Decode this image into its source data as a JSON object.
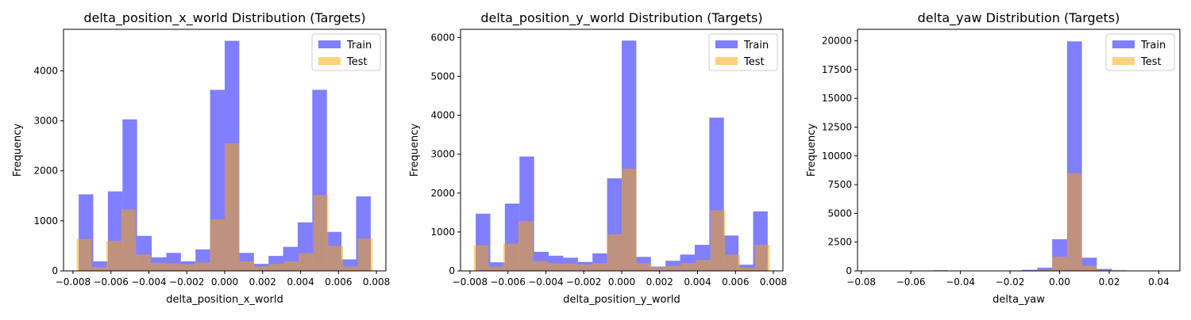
{
  "colors": {
    "train": "#0000ff",
    "test": "#ffa500",
    "train_alpha": 0.5,
    "test_alpha": 0.5
  },
  "chart_data": [
    {
      "type": "histogram",
      "title": "delta_position_x_world Distribution (Targets)",
      "xlabel": "delta_position_x_world",
      "ylabel": "Frequency",
      "xlim": [
        -0.0085,
        0.0085
      ],
      "ylim": [
        0,
        4830
      ],
      "xticks": [
        -0.008,
        -0.006,
        -0.004,
        -0.002,
        0.0,
        0.002,
        0.004,
        0.006,
        0.008
      ],
      "xtick_labels": [
        "−0.008",
        "−0.006",
        "−0.004",
        "−0.002",
        "0.000",
        "0.002",
        "0.004",
        "0.006",
        "0.008"
      ],
      "yticks": [
        0,
        1000,
        2000,
        3000,
        4000
      ],
      "ytick_labels": [
        "0",
        "1000",
        "2000",
        "3000",
        "4000"
      ],
      "legend": "top-right",
      "grid": false,
      "series": [
        {
          "name": "Train",
          "bin_edges": [
            -0.0077,
            -0.00693,
            -0.00616,
            -0.00539,
            -0.00462,
            -0.00385,
            -0.00308,
            -0.00231,
            -0.00154,
            -0.00077,
            0.0,
            0.00077,
            0.00154,
            0.00231,
            0.00308,
            0.00385,
            0.00462,
            0.00539,
            0.00616,
            0.00693,
            0.0077
          ],
          "values": [
            1530,
            190,
            1590,
            3030,
            700,
            270,
            360,
            190,
            430,
            3620,
            4600,
            360,
            140,
            300,
            480,
            970,
            3620,
            780,
            230,
            1490
          ]
        },
        {
          "name": "Test",
          "bin_edges": [
            -0.0078,
            -0.00702,
            -0.00624,
            -0.00546,
            -0.00468,
            -0.0039,
            -0.00312,
            -0.00234,
            -0.00156,
            -0.00078,
            0.0,
            0.00078,
            0.00156,
            0.00234,
            0.00312,
            0.0039,
            0.00468,
            0.00546,
            0.00624,
            0.00702,
            0.0078
          ],
          "values": [
            640,
            80,
            600,
            1230,
            330,
            160,
            150,
            130,
            170,
            1030,
            2550,
            190,
            90,
            140,
            190,
            350,
            1520,
            500,
            90,
            650
          ]
        }
      ]
    },
    {
      "type": "histogram",
      "title": "delta_position_y_world Distribution (Targets)",
      "xlabel": "delta_position_y_world",
      "ylabel": "Frequency",
      "xlim": [
        -0.0085,
        0.0085
      ],
      "ylim": [
        0,
        6210
      ],
      "xticks": [
        -0.008,
        -0.006,
        -0.004,
        -0.002,
        0.0,
        0.002,
        0.004,
        0.006,
        0.008
      ],
      "xtick_labels": [
        "−0.008",
        "−0.006",
        "−0.004",
        "−0.002",
        "0.000",
        "0.002",
        "0.004",
        "0.006",
        "0.008"
      ],
      "yticks": [
        0,
        1000,
        2000,
        3000,
        4000,
        5000,
        6000
      ],
      "ytick_labels": [
        "0",
        "1000",
        "2000",
        "3000",
        "4000",
        "5000",
        "6000"
      ],
      "legend": "top-right",
      "grid": false,
      "series": [
        {
          "name": "Train",
          "bin_edges": [
            -0.0077,
            -0.00693,
            -0.00616,
            -0.00539,
            -0.00462,
            -0.00385,
            -0.00308,
            -0.00231,
            -0.00154,
            -0.00077,
            0.0,
            0.00077,
            0.00154,
            0.00231,
            0.00308,
            0.00385,
            0.00462,
            0.00539,
            0.00616,
            0.00693,
            0.0077
          ],
          "values": [
            1470,
            220,
            1730,
            2940,
            490,
            390,
            340,
            230,
            450,
            2380,
            5920,
            360,
            110,
            260,
            420,
            670,
            3940,
            910,
            160,
            1530
          ]
        },
        {
          "name": "Test",
          "bin_edges": [
            -0.0078,
            -0.00702,
            -0.00624,
            -0.00546,
            -0.00468,
            -0.0039,
            -0.00312,
            -0.00234,
            -0.00156,
            -0.00078,
            0.0,
            0.00078,
            0.00156,
            0.00234,
            0.00312,
            0.0039,
            0.00468,
            0.00546,
            0.00624,
            0.00702,
            0.0078
          ],
          "values": [
            660,
            110,
            700,
            1280,
            250,
            190,
            190,
            160,
            200,
            940,
            2630,
            200,
            90,
            130,
            200,
            280,
            1560,
            420,
            80,
            670
          ]
        }
      ]
    },
    {
      "type": "histogram",
      "title": "delta_yaw Distribution (Targets)",
      "xlabel": "delta_yaw",
      "ylabel": "Frequency",
      "xlim": [
        -0.0815,
        0.0485
      ],
      "ylim": [
        0,
        21000
      ],
      "xticks": [
        -0.08,
        -0.06,
        -0.04,
        -0.02,
        0.0,
        0.02,
        0.04
      ],
      "xtick_labels": [
        "−0.08",
        "−0.06",
        "−0.04",
        "−0.02",
        "0.00",
        "0.02",
        "0.04"
      ],
      "yticks": [
        0,
        2500,
        5000,
        7500,
        10000,
        12500,
        15000,
        17500,
        20000
      ],
      "ytick_labels": [
        "0",
        "2500",
        "5000",
        "7500",
        "10000",
        "12500",
        "15000",
        "17500",
        "20000"
      ],
      "legend": "top-right",
      "grid": false,
      "series": [
        {
          "name": "Train",
          "bin_edges": [
            -0.075,
            -0.069,
            -0.063,
            -0.057,
            -0.051,
            -0.045,
            -0.039,
            -0.033,
            -0.027,
            -0.021,
            -0.015,
            -0.009,
            -0.003,
            0.003,
            0.009,
            0.015,
            0.021,
            0.027,
            0.033,
            0.039,
            0.045
          ],
          "values": [
            5,
            5,
            10,
            30,
            60,
            30,
            15,
            20,
            25,
            40,
            90,
            280,
            2750,
            19950,
            1150,
            170,
            50,
            25,
            20,
            10
          ]
        },
        {
          "name": "Test",
          "bin_edges": [
            -0.075,
            -0.069,
            -0.063,
            -0.057,
            -0.051,
            -0.045,
            -0.039,
            -0.033,
            -0.027,
            -0.021,
            -0.015,
            -0.009,
            -0.003,
            0.003,
            0.009,
            0.015,
            0.021,
            0.027,
            0.033,
            0.039,
            0.045
          ],
          "values": [
            2,
            2,
            4,
            12,
            25,
            12,
            6,
            8,
            10,
            15,
            35,
            110,
            1250,
            8500,
            470,
            70,
            20,
            10,
            8,
            4
          ]
        }
      ]
    }
  ]
}
